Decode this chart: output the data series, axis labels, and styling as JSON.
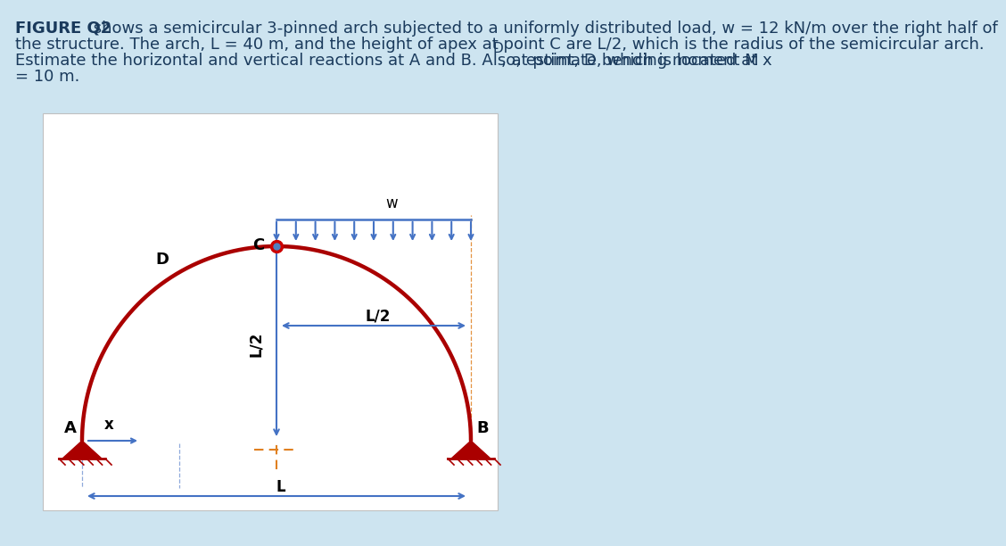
{
  "bg_color": "#cde4f0",
  "box_color": "#ffffff",
  "arch_color": "#aa0000",
  "arch_linewidth": 3.2,
  "dim_color": "#4472c4",
  "orange_color": "#e08020",
  "text_color": "#000000",
  "red_color": "#cc0000",
  "title_bold": "FIGURE Q2",
  "line1_rest": " shows a semicircular 3-pinned arch subjected to a uniformly distributed load, w = 12 kN/m over the right half of",
  "line2": "the structure. The arch, L = 40 m, and the height of apex at point C are L/2, which is the radius of the semicircular arch.",
  "line3_pre": "Estimate the horizontal and vertical reactions at A and B. Also, estimate bending moment M",
  "line3_sub": "D",
  "line3_post": ", at point, D, which is located at x",
  "line4": "= 10 m.",
  "label_A": "A",
  "label_B": "B",
  "label_C": "C",
  "label_D": "D",
  "label_w": "w",
  "label_L": "L",
  "label_L2_horiz": "L/2",
  "label_L2_vert": "L/2",
  "label_x": "x",
  "n_udl_arrows": 11,
  "fontsize_text": 13,
  "fontsize_label": 13,
  "fontsize_dim": 12
}
